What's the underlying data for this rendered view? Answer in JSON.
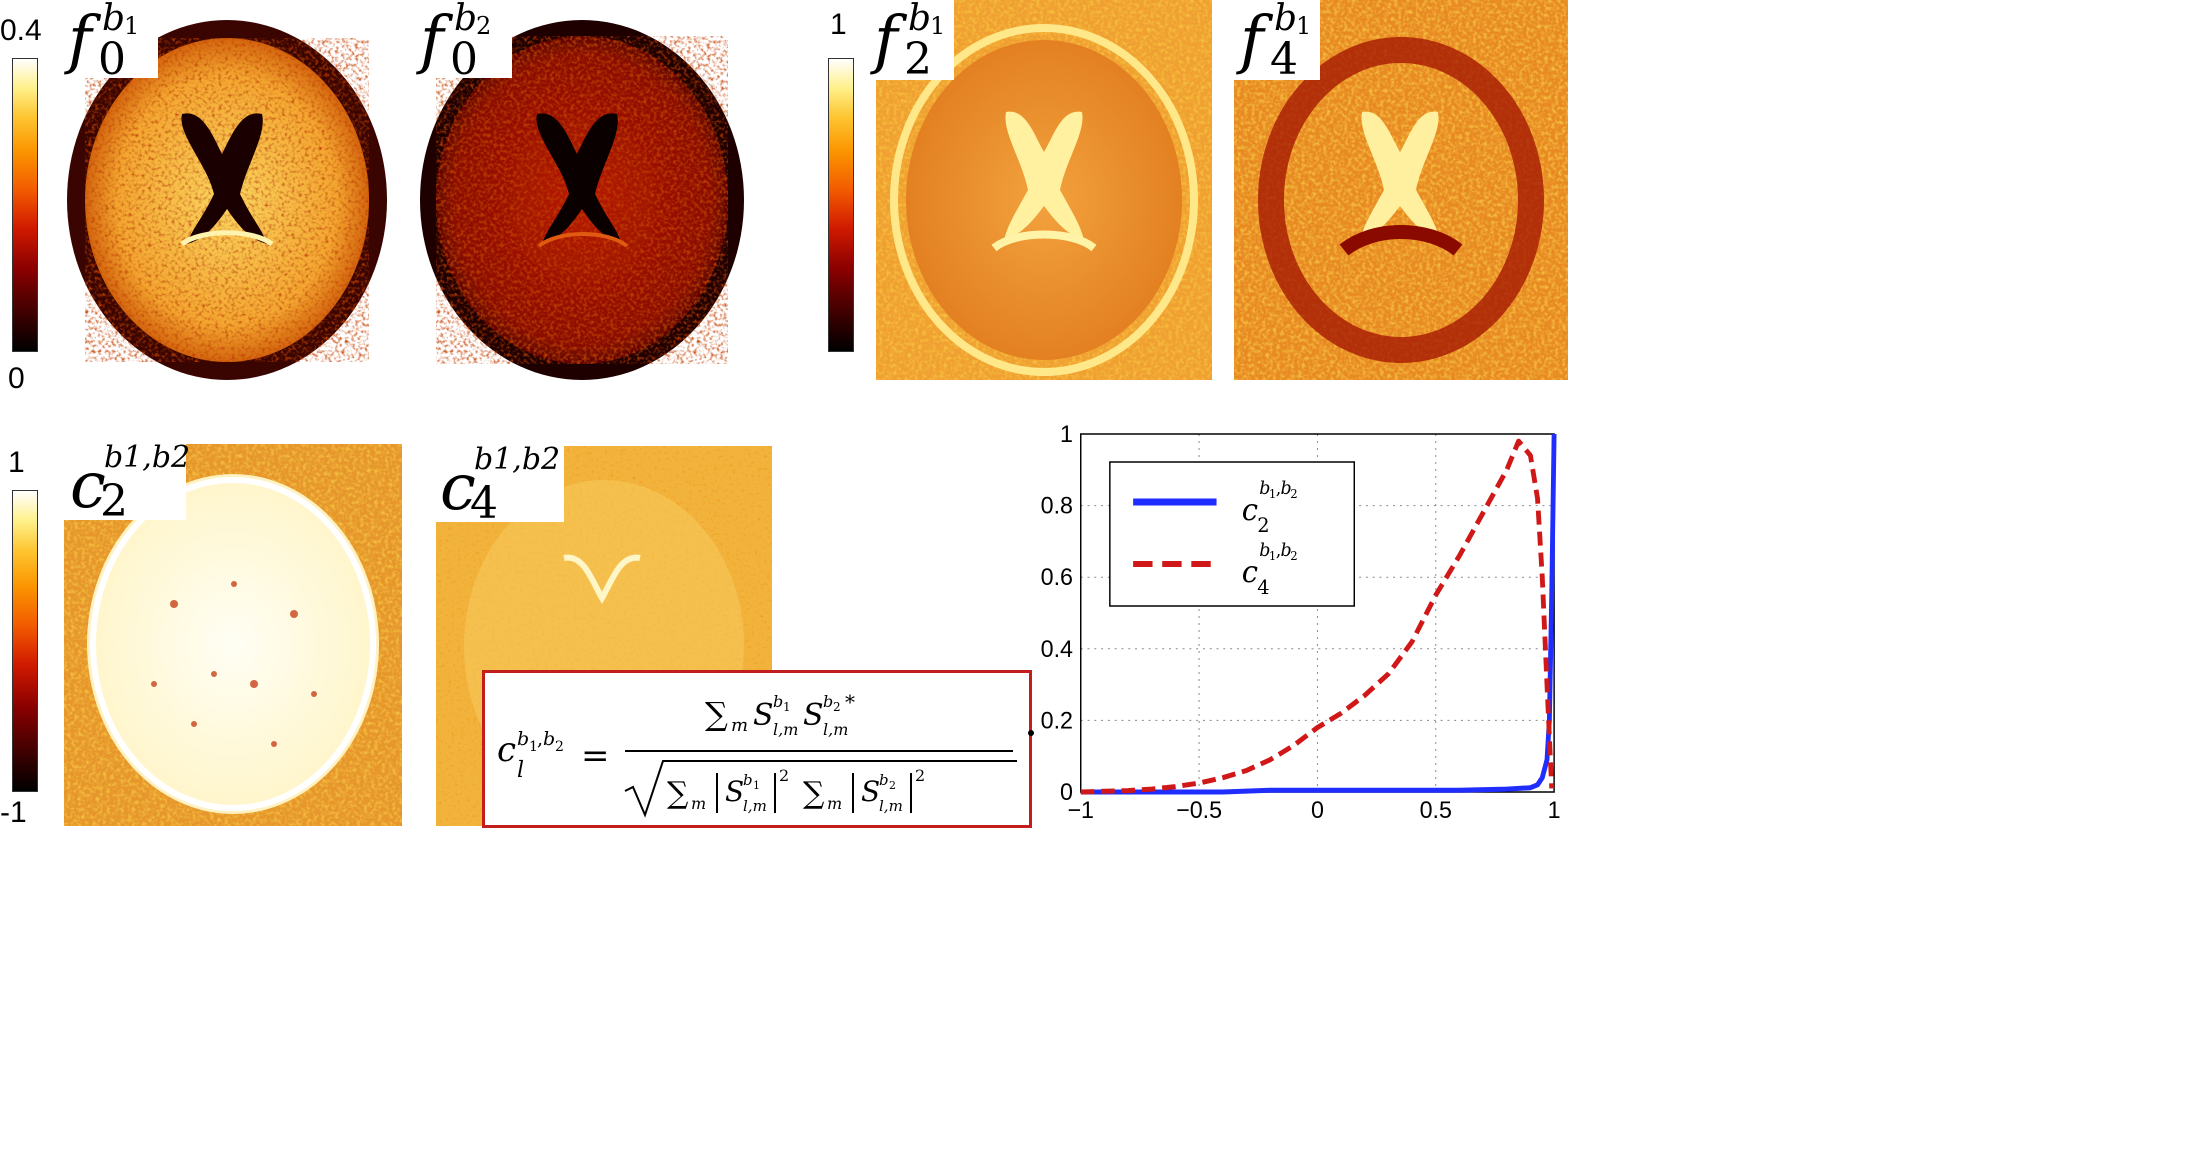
{
  "colorbars": {
    "top_left": {
      "max": "0.4",
      "min": "0"
    },
    "top_right": {
      "max": "1"
    },
    "bottom_left": {
      "max": "1",
      "min": "-1"
    }
  },
  "panels": [
    {
      "id": "f0_b1",
      "symbol": "f",
      "subscript": "0",
      "superscript": "b",
      "superscript_index": "1"
    },
    {
      "id": "f0_b2",
      "symbol": "f",
      "subscript": "0",
      "superscript": "b",
      "superscript_index": "2"
    },
    {
      "id": "f2_b1",
      "symbol": "f",
      "subscript": "2",
      "superscript": "b",
      "superscript_index": "1"
    },
    {
      "id": "f4_b1",
      "symbol": "f",
      "subscript": "4",
      "superscript": "b",
      "superscript_index": "1"
    },
    {
      "id": "c2",
      "symbol": "c",
      "subscript": "2",
      "superscript": "b1,b2"
    },
    {
      "id": "c4",
      "symbol": "c",
      "subscript": "4",
      "superscript": "b1,b2"
    }
  ],
  "equation": {
    "lhs": "c",
    "lhs_sub": "l",
    "lhs_sup": "b1,b2",
    "numerator": "∑m S(b1)l,m S(b2)*l,m",
    "denominator": "√(∑m |S(b1)l,m|² ∑m |S(b2)l,m|²)"
  },
  "chart_data": {
    "type": "line",
    "title": "",
    "xlabel": "",
    "ylabel": "",
    "xlim": [
      -1,
      1
    ],
    "ylim": [
      0,
      1
    ],
    "xticks": [
      "−1",
      "−0.5",
      "0",
      "0.5",
      "1"
    ],
    "yticks": [
      "0",
      "0.2",
      "0.4",
      "0.6",
      "0.8",
      "1"
    ],
    "grid": true,
    "legend_position": "top-left",
    "series": [
      {
        "name": "c2 b1,b2",
        "color": "#1f2dff",
        "dash": "solid",
        "x": [
          -1,
          -0.8,
          -0.6,
          -0.4,
          -0.2,
          0,
          0.2,
          0.4,
          0.6,
          0.8,
          0.9,
          0.93,
          0.95,
          0.97,
          0.98,
          0.99,
          1.0
        ],
        "y": [
          0.0,
          0.0,
          0.0,
          0.0,
          0.005,
          0.005,
          0.005,
          0.005,
          0.005,
          0.008,
          0.012,
          0.02,
          0.04,
          0.09,
          0.2,
          0.55,
          1.0
        ]
      },
      {
        "name": "c4 b1,b2",
        "color": "#d01818",
        "dash": "dashed",
        "x": [
          -1,
          -0.9,
          -0.8,
          -0.7,
          -0.6,
          -0.5,
          -0.4,
          -0.3,
          -0.2,
          -0.1,
          0,
          0.1,
          0.2,
          0.3,
          0.4,
          0.5,
          0.6,
          0.7,
          0.8,
          0.85,
          0.9,
          0.93,
          0.95,
          0.97,
          0.99
        ],
        "y": [
          0.0,
          0.002,
          0.004,
          0.008,
          0.015,
          0.025,
          0.04,
          0.06,
          0.09,
          0.13,
          0.18,
          0.22,
          0.27,
          0.33,
          0.42,
          0.55,
          0.66,
          0.78,
          0.9,
          0.98,
          0.94,
          0.82,
          0.6,
          0.3,
          0.01
        ]
      }
    ]
  }
}
